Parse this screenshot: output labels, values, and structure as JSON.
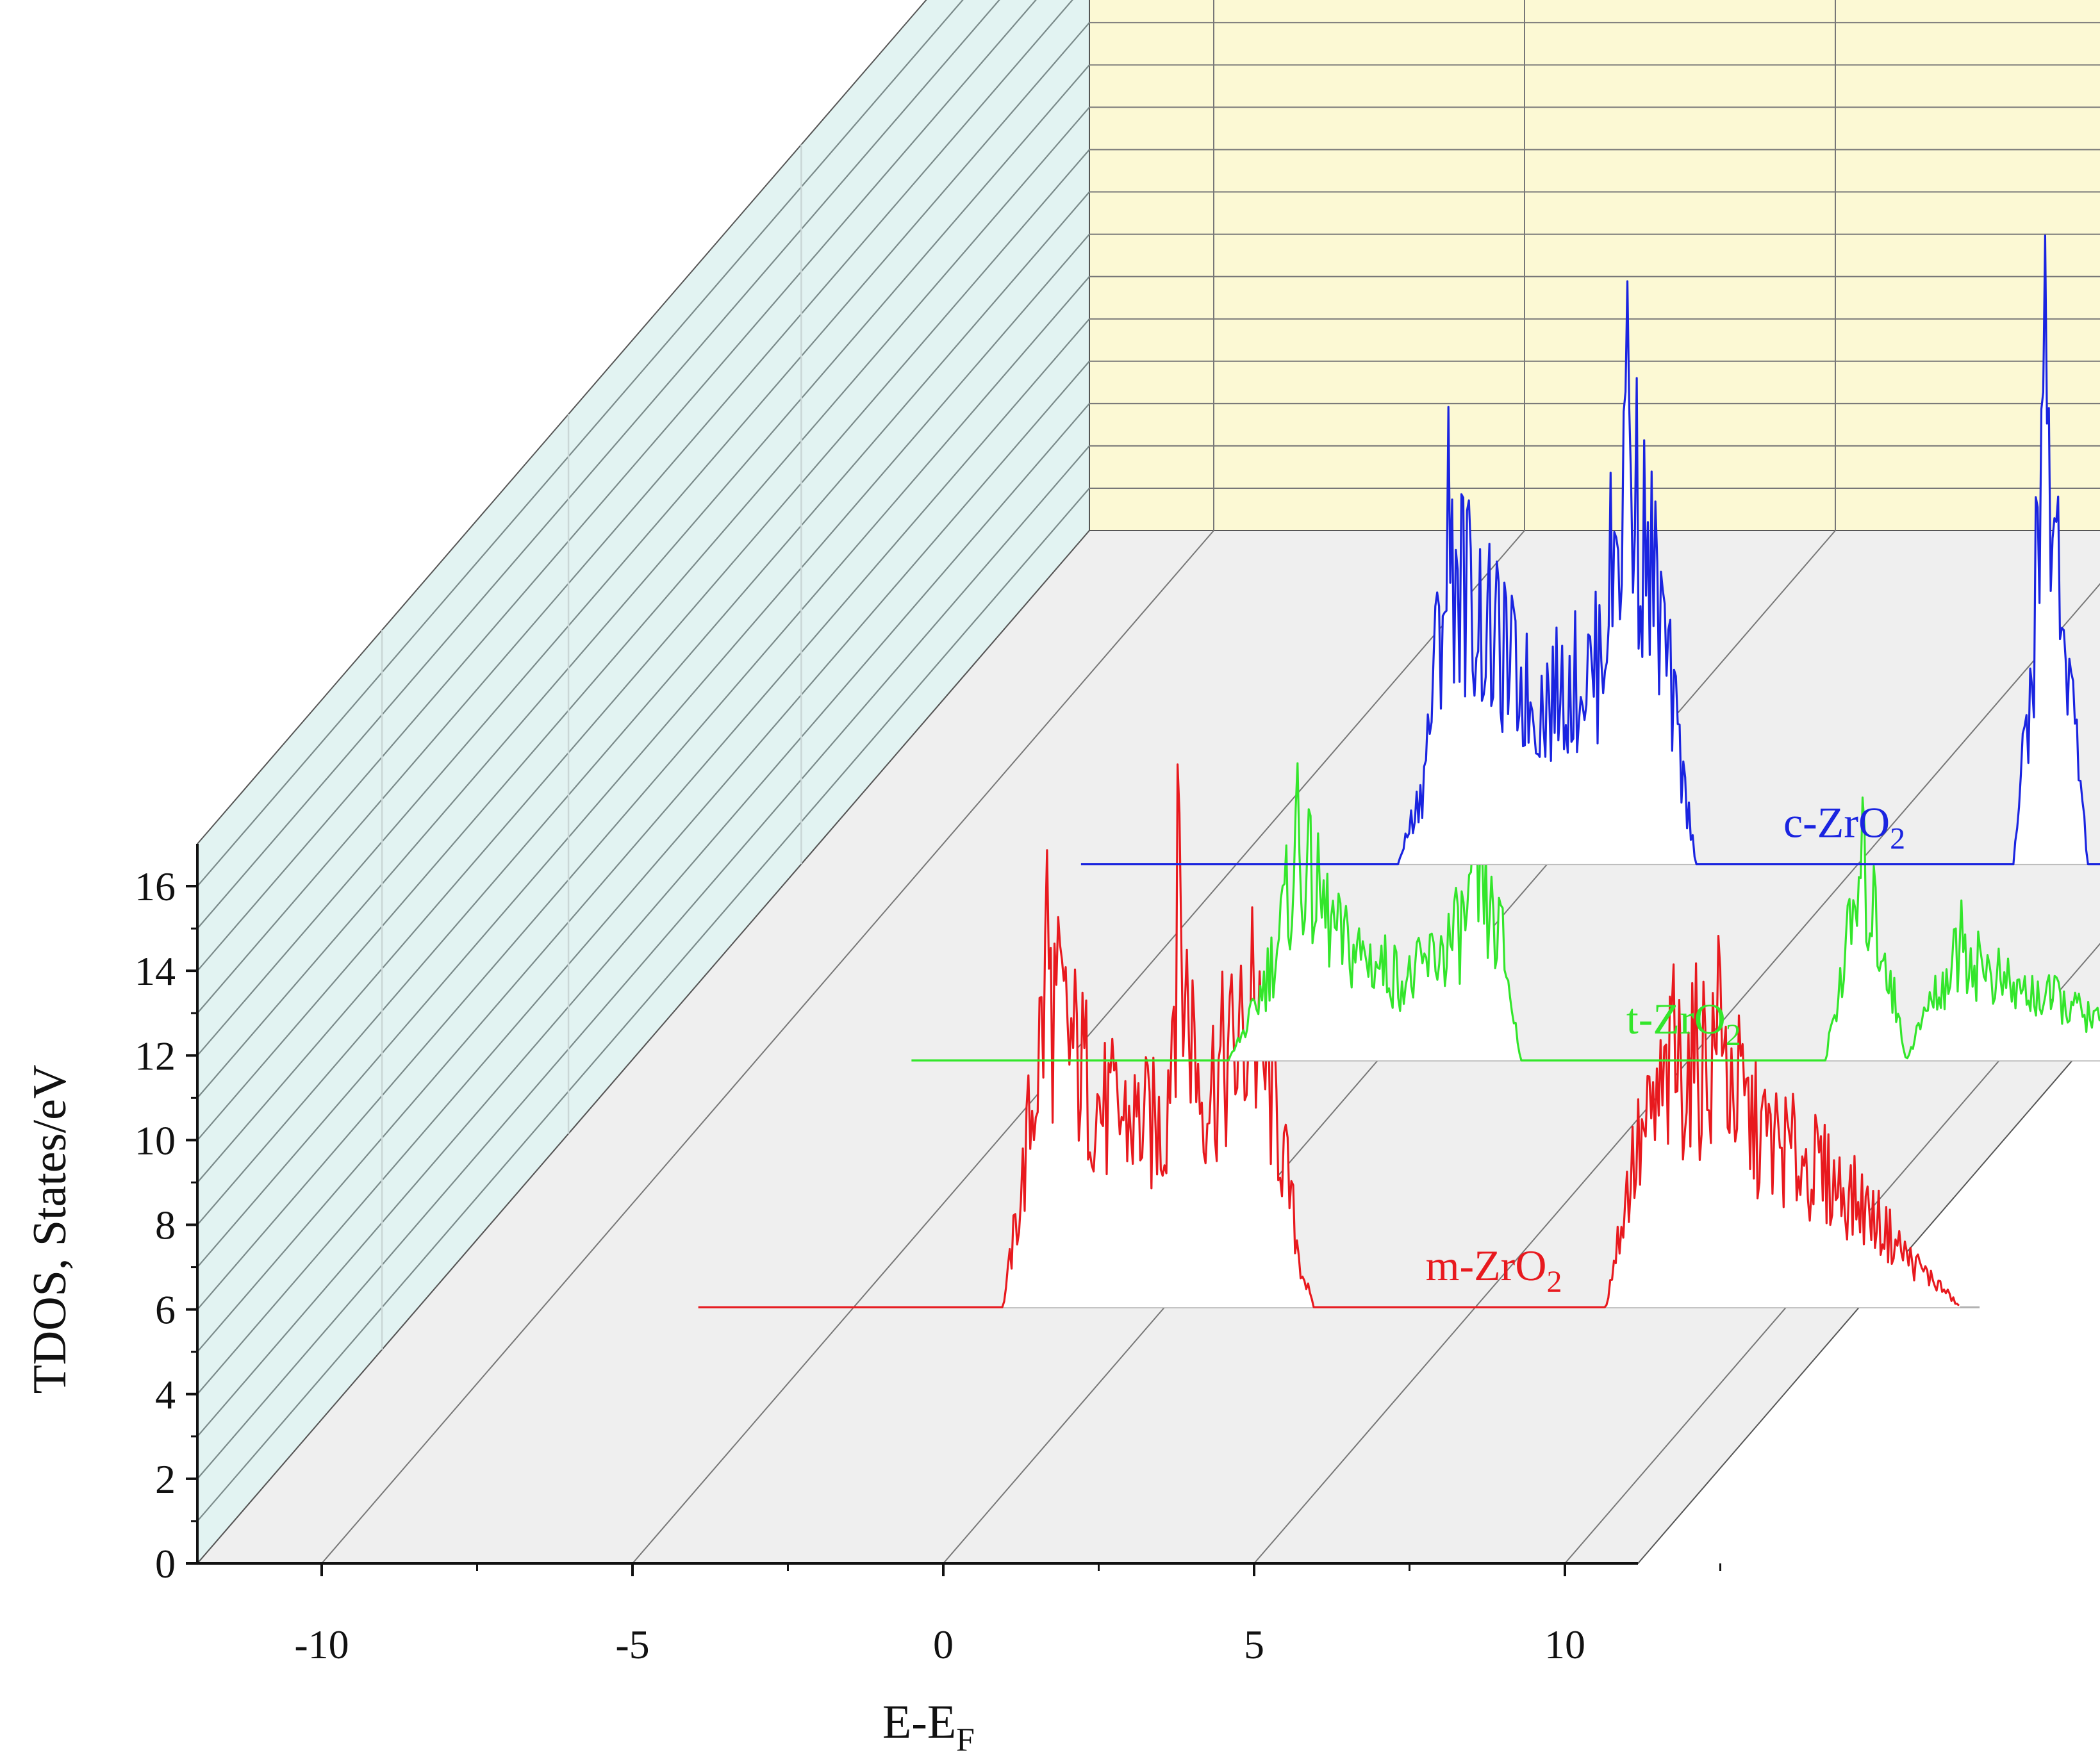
{
  "chart_data": {
    "type": "line",
    "style": "3d-waterfall",
    "xlabel": "E-E",
    "xlabel_sub": "F",
    "ylabel": "TDOS, States/eV",
    "xlim": [
      -12,
      13
    ],
    "ylim": [
      0,
      17
    ],
    "xticks": [
      -10,
      -5,
      0,
      5,
      10
    ],
    "yticks": [
      0,
      2,
      4,
      6,
      8,
      10,
      12,
      14,
      16
    ],
    "grid": true,
    "colors": {
      "back_wall": "#fcf9d4",
      "side_wall": "#e2f3f2",
      "floor": "#efefef"
    },
    "series": [
      {
        "name": "m-ZrO",
        "name_sub": "2",
        "color": "#e8191e",
        "x_range": [
          -7.5,
          12.8
        ],
        "features": [
          {
            "x": -2.6,
            "y": 0.0,
            "edge": true
          },
          {
            "x": -2.3,
            "y": 3.0
          },
          {
            "x": -1.9,
            "y": 8.0,
            "peak": true
          },
          {
            "x": -1.0,
            "y": 5.0
          },
          {
            "x": 0.0,
            "y": 4.5
          },
          {
            "x": 0.2,
            "y": 9.5,
            "peak": true
          },
          {
            "x": 0.6,
            "y": 5.5
          },
          {
            "x": 1.4,
            "y": 7.0,
            "peak": true
          },
          {
            "x": 1.8,
            "y": 5.0
          },
          {
            "x": 2.2,
            "y": 1.0
          },
          {
            "x": 2.4,
            "y": 0.0,
            "edge": true
          },
          {
            "x": 7.1,
            "y": 0.0,
            "edge": true
          },
          {
            "x": 7.5,
            "y": 3.5
          },
          {
            "x": 8.2,
            "y": 6.0,
            "peak": true
          },
          {
            "x": 8.9,
            "y": 6.5,
            "peak": true
          },
          {
            "x": 9.5,
            "y": 4.5
          },
          {
            "x": 10.5,
            "y": 3.5
          },
          {
            "x": 11.3,
            "y": 2.5
          },
          {
            "x": 12.0,
            "y": 1.2
          },
          {
            "x": 12.5,
            "y": 0.5
          },
          {
            "x": 12.8,
            "y": 0.0,
            "edge": true
          }
        ]
      },
      {
        "name": "t-ZrO",
        "name_sub": "2",
        "color": "#33e62b",
        "x_range": [
          -7.5,
          12.3
        ],
        "features": [
          {
            "x": -2.4,
            "y": 0.0,
            "edge": true
          },
          {
            "x": -2.0,
            "y": 1.2
          },
          {
            "x": -1.6,
            "y": 3.0
          },
          {
            "x": -1.3,
            "y": 5.2,
            "peak": true
          },
          {
            "x": -0.6,
            "y": 3.0
          },
          {
            "x": 0.5,
            "y": 2.0
          },
          {
            "x": 1.3,
            "y": 3.2
          },
          {
            "x": 1.6,
            "y": 4.3,
            "peak": true
          },
          {
            "x": 2.0,
            "y": 3.0
          },
          {
            "x": 2.3,
            "y": 0.0,
            "edge": true
          },
          {
            "x": 7.2,
            "y": 0.0,
            "edge": true
          },
          {
            "x": 7.5,
            "y": 2.5
          },
          {
            "x": 7.8,
            "y": 4.6,
            "peak": true
          },
          {
            "x": 8.2,
            "y": 2.5
          },
          {
            "x": 8.5,
            "y": 0.0,
            "edge": true
          },
          {
            "x": 8.8,
            "y": 1.2
          },
          {
            "x": 9.4,
            "y": 2.8,
            "peak": true
          },
          {
            "x": 10.2,
            "y": 1.8
          },
          {
            "x": 11.0,
            "y": 1.5
          },
          {
            "x": 11.8,
            "y": 0.8
          },
          {
            "x": 12.2,
            "y": 0.2
          },
          {
            "x": 12.3,
            "y": 0.0,
            "edge": true
          }
        ]
      },
      {
        "name": "c-ZrO",
        "name_sub": "2",
        "color": "#1a24e0",
        "x_range": [
          -7.5,
          12.3
        ],
        "features": [
          {
            "x": -2.4,
            "y": 0.0,
            "edge": true
          },
          {
            "x": -2.0,
            "y": 2.0
          },
          {
            "x": -1.6,
            "y": 8.0,
            "peak": true
          },
          {
            "x": -1.0,
            "y": 6.0
          },
          {
            "x": -0.2,
            "y": 4.0
          },
          {
            "x": 0.8,
            "y": 5.0
          },
          {
            "x": 1.3,
            "y": 10.2,
            "peak": true
          },
          {
            "x": 1.8,
            "y": 6.5
          },
          {
            "x": 2.2,
            "y": 2.0
          },
          {
            "x": 2.4,
            "y": 0.0,
            "edge": true
          },
          {
            "x": 7.5,
            "y": 0.0,
            "edge": true
          },
          {
            "x": 7.8,
            "y": 5.0
          },
          {
            "x": 8.0,
            "y": 11.0,
            "peak": true
          },
          {
            "x": 8.4,
            "y": 5.0
          },
          {
            "x": 8.7,
            "y": 0.0,
            "edge": true
          },
          {
            "x": 9.3,
            "y": 0.0,
            "edge": true
          },
          {
            "x": 9.6,
            "y": 3.0
          },
          {
            "x": 10.2,
            "y": 4.0
          },
          {
            "x": 11.2,
            "y": 5.0,
            "peak": true
          },
          {
            "x": 11.8,
            "y": 3.0
          },
          {
            "x": 12.2,
            "y": 2.0
          },
          {
            "x": 12.3,
            "y": 0.0,
            "edge": true
          }
        ]
      }
    ]
  }
}
